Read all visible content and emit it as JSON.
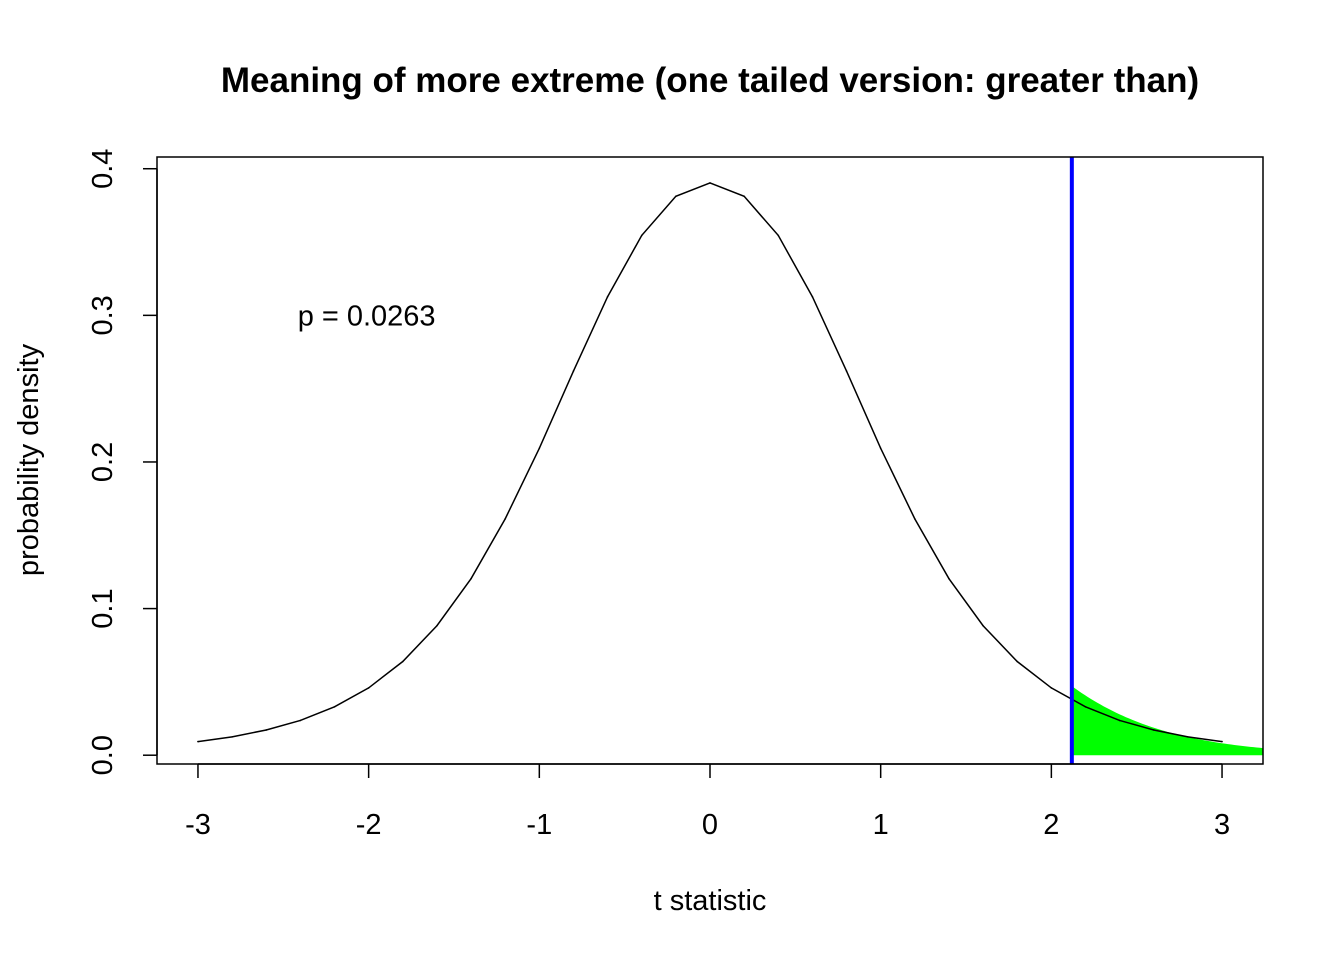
{
  "chart_data": {
    "type": "line",
    "title": "Meaning of more extreme (one tailed version: greater than)",
    "xlabel": "t statistic",
    "ylabel": "probability density",
    "xlim": [
      -3.24,
      3.24
    ],
    "ylim": [
      -0.006,
      0.408
    ],
    "x_ticks": [
      -3,
      -2,
      -1,
      0,
      1,
      2,
      3
    ],
    "x_tick_labels": [
      "-3",
      "-2",
      "-1",
      "0",
      "1",
      "2",
      "3"
    ],
    "y_ticks": [
      0.0,
      0.1,
      0.2,
      0.3,
      0.4
    ],
    "y_tick_labels": [
      "0.0",
      "0.1",
      "0.2",
      "0.3",
      "0.4"
    ],
    "grid": false,
    "legend": "none",
    "series": [
      {
        "values": [
          {
            "x": -3.0,
            "y": 0.0093
          },
          {
            "x": -2.8,
            "y": 0.0125
          },
          {
            "x": -2.6,
            "y": 0.0172
          },
          {
            "x": -2.4,
            "y": 0.0237
          },
          {
            "x": -2.2,
            "y": 0.033
          },
          {
            "x": -2.0,
            "y": 0.0459
          },
          {
            "x": -1.8,
            "y": 0.0639
          },
          {
            "x": -1.6,
            "y": 0.0883
          },
          {
            "x": -1.4,
            "y": 0.1204
          },
          {
            "x": -1.2,
            "y": 0.1612
          },
          {
            "x": -1.0,
            "y": 0.2093
          },
          {
            "x": -0.8,
            "y": 0.262
          },
          {
            "x": -0.6,
            "y": 0.3127
          },
          {
            "x": -0.4,
            "y": 0.3545
          },
          {
            "x": -0.2,
            "y": 0.3812
          },
          {
            "x": 0.0,
            "y": 0.3903
          },
          {
            "x": 0.2,
            "y": 0.3812
          },
          {
            "x": 0.4,
            "y": 0.3545
          },
          {
            "x": 0.6,
            "y": 0.3127
          },
          {
            "x": 0.8,
            "y": 0.262
          },
          {
            "x": 1.0,
            "y": 0.2093
          },
          {
            "x": 1.2,
            "y": 0.1612
          },
          {
            "x": 1.4,
            "y": 0.1204
          },
          {
            "x": 1.6,
            "y": 0.0883
          },
          {
            "x": 1.8,
            "y": 0.0639
          },
          {
            "x": 2.0,
            "y": 0.0459
          },
          {
            "x": 2.2,
            "y": 0.033
          },
          {
            "x": 2.4,
            "y": 0.0237
          },
          {
            "x": 2.6,
            "y": 0.0172
          },
          {
            "x": 2.8,
            "y": 0.0125
          },
          {
            "x": 3.0,
            "y": 0.0093
          }
        ]
      }
    ],
    "shaded_region": {
      "from_x": 2.12,
      "to_x": 3.24,
      "color": "#00ff00"
    },
    "vertical_line": {
      "x": 2.12,
      "color": "#0000ff"
    },
    "annotation": {
      "text": "p = 0.0263",
      "x": -2.0,
      "y": 0.3
    }
  }
}
